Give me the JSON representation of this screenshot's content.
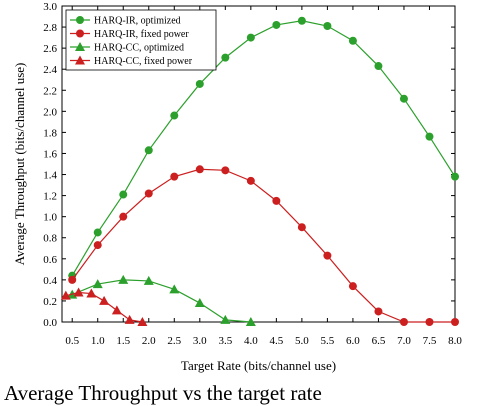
{
  "chart_data": {
    "type": "line",
    "xlabel": "Target Rate (bits/channel use)",
    "ylabel": "Average Throughput (bits/channel use)",
    "xlim": [
      0.3,
      8.0
    ],
    "ylim": [
      0.0,
      3.0
    ],
    "xticks": [
      "0.5",
      "1.0",
      "1.5",
      "2.0",
      "2.5",
      "3.0",
      "3.5",
      "4.0",
      "4.5",
      "5.0",
      "5.5",
      "6.0",
      "6.5",
      "7.0",
      "7.5",
      "8.0"
    ],
    "yticks": [
      "0.0",
      "0.2",
      "0.4",
      "0.6",
      "0.8",
      "1.0",
      "1.2",
      "1.4",
      "1.6",
      "1.8",
      "2.0",
      "2.2",
      "2.4",
      "2.6",
      "2.8",
      "3.0"
    ],
    "legend_position": "top-left",
    "series": [
      {
        "name": "HARQ-IR, optimized",
        "color": "#2ca02c",
        "marker": "circle",
        "x": [
          0.5,
          1.0,
          1.5,
          2.0,
          2.5,
          3.0,
          3.5,
          4.0,
          4.5,
          5.0,
          5.5,
          6.0,
          6.5,
          7.0,
          7.5,
          8.0
        ],
        "y": [
          0.44,
          0.85,
          1.21,
          1.63,
          1.96,
          2.26,
          2.51,
          2.7,
          2.82,
          2.86,
          2.81,
          2.67,
          2.43,
          2.12,
          1.76,
          1.38
        ]
      },
      {
        "name": "HARQ-IR,  fixed power",
        "color": "#cc1f1f",
        "marker": "circle",
        "x": [
          0.5,
          1.0,
          1.5,
          2.0,
          2.5,
          3.0,
          3.5,
          4.0,
          4.5,
          5.0,
          5.5,
          6.0,
          6.5,
          7.0,
          7.5,
          8.0
        ],
        "y": [
          0.4,
          0.73,
          1.0,
          1.22,
          1.38,
          1.45,
          1.44,
          1.34,
          1.15,
          0.9,
          0.63,
          0.34,
          0.1,
          0.0,
          0.0,
          0.0
        ]
      },
      {
        "name": "HARQ-CC, optimized",
        "color": "#2ca02c",
        "marker": "triangle",
        "x": [
          0.5,
          1.0,
          1.5,
          2.0,
          2.5,
          3.0,
          3.5,
          4.0
        ],
        "y": [
          0.26,
          0.36,
          0.4,
          0.39,
          0.31,
          0.18,
          0.02,
          0.0
        ]
      },
      {
        "name": "HARQ-CC, fixed power",
        "color": "#cc1f1f",
        "marker": "triangle",
        "x": [
          0.375,
          0.625,
          0.875,
          1.125,
          1.375,
          1.625,
          1.875
        ],
        "y": [
          0.25,
          0.28,
          0.27,
          0.2,
          0.11,
          0.02,
          0.0
        ]
      }
    ]
  },
  "caption": "Average Throughput vs the target rate"
}
